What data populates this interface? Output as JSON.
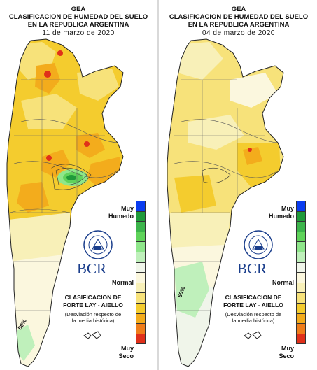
{
  "panels": [
    {
      "title_line1": "GEA",
      "title_line2": "CLASIFICACION DE HUMEDAD DEL SUELO",
      "title_line3": "EN LA REPUBLICA ARGENTINA",
      "date": "11 de marzo de 2020",
      "contour_label": "50%"
    },
    {
      "title_line1": "GEA",
      "title_line2": "CLASIFICACION DE HUMEDAD DEL SUELO",
      "title_line3": "EN LA REPUBLICA ARGENTINA",
      "date": "04 de marzo de 2020",
      "contour_label": "50%"
    }
  ],
  "legend": {
    "top_label_line1": "Muy",
    "top_label_line2": "Humedo",
    "mid_label": "Normal",
    "bottom_label_line1": "Muy",
    "bottom_label_line2": "Seco",
    "colors": [
      "#0a3cf0",
      "#1f9a3a",
      "#3cb44b",
      "#5fd35a",
      "#8ee68a",
      "#bff0bb",
      "#f0f5ea",
      "#fbf7de",
      "#f8f0b8",
      "#f7e27a",
      "#f4cc2e",
      "#f3ac1c",
      "#ef7d1a",
      "#e0301a"
    ]
  },
  "logo": {
    "name": "BCR",
    "seal_icon": "bolsa-de-comercio-de-rosario-seal"
  },
  "classification": {
    "line1": "CLASIFICACION DE",
    "line2": "FORTE LAY - AIELLO",
    "note_line1": "(Desviación respecto de",
    "note_line2": "la media histórica)"
  }
}
